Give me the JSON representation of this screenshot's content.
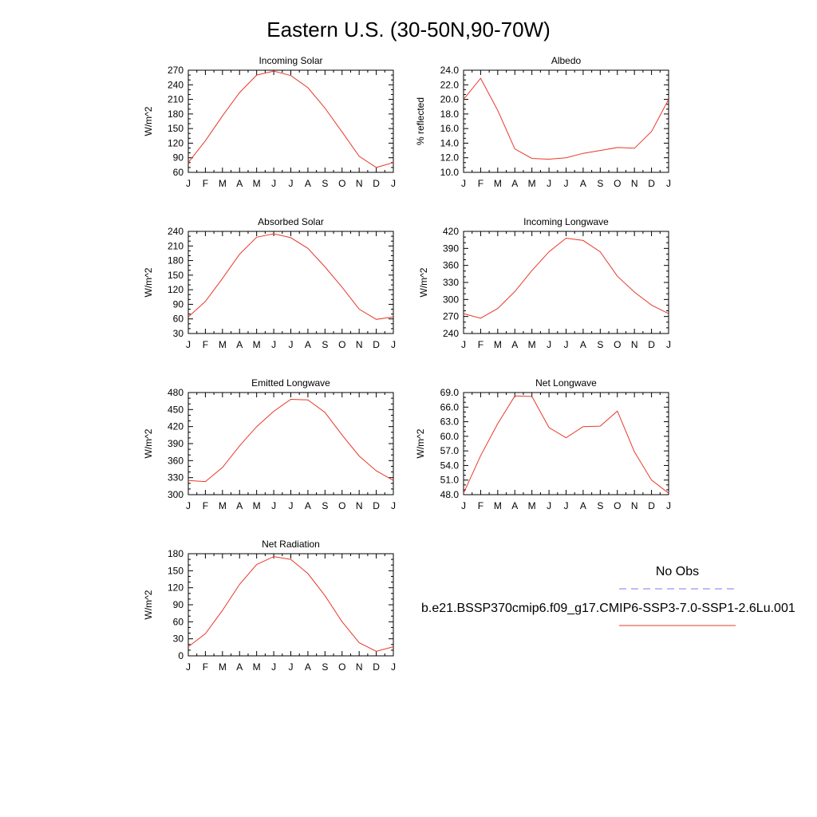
{
  "title": "Eastern U.S. (30-50N,90-70W)",
  "months": [
    "J",
    "F",
    "M",
    "A",
    "M",
    "J",
    "J",
    "A",
    "S",
    "O",
    "N",
    "D",
    "J"
  ],
  "legend": {
    "obs_label": "No Obs",
    "obs_color": "#7b7bf0",
    "model_label": "b.e21.BSSP370cmip6.f09_g17.CMIP6-SSP3-7.0-SSP1-2.6Lu.001",
    "model_color": "#e8382a"
  },
  "chart_data": [
    {
      "type": "line",
      "title": "Incoming Solar",
      "ylabel": "W/m^2",
      "ylim": [
        60,
        270
      ],
      "yticks": [
        "60",
        "90",
        "120",
        "150",
        "180",
        "210",
        "240",
        "270"
      ],
      "series": [
        {
          "values": [
            80,
            125,
            176,
            224,
            260,
            268,
            259,
            234,
            192,
            143,
            93,
            70,
            80
          ]
        }
      ]
    },
    {
      "type": "line",
      "title": "Albedo",
      "ylabel": "% reflected",
      "ylim": [
        10,
        24
      ],
      "yticks": [
        "10.0",
        "12.0",
        "14.0",
        "16.0",
        "18.0",
        "20.0",
        "22.0",
        "24.0"
      ],
      "series": [
        {
          "values": [
            20.0,
            22.9,
            18.5,
            13.2,
            11.9,
            11.8,
            12.0,
            12.6,
            13.0,
            13.4,
            13.3,
            15.6,
            20.0
          ]
        }
      ]
    },
    {
      "type": "line",
      "title": "Absorbed Solar",
      "ylabel": "W/m^2",
      "ylim": [
        30,
        240
      ],
      "yticks": [
        "30",
        "60",
        "90",
        "120",
        "150",
        "180",
        "210",
        "240"
      ],
      "series": [
        {
          "values": [
            64,
            96,
            143,
            193,
            228,
            235,
            227,
            205,
            167,
            125,
            80,
            59,
            64
          ]
        }
      ]
    },
    {
      "type": "line",
      "title": "Incoming Longwave",
      "ylabel": "W/m^2",
      "ylim": [
        240,
        420
      ],
      "yticks": [
        "240",
        "270",
        "300",
        "330",
        "360",
        "390",
        "420"
      ],
      "series": [
        {
          "values": [
            275,
            267,
            284,
            314,
            351,
            384,
            408,
            404,
            384,
            341,
            313,
            290,
            275
          ]
        }
      ]
    },
    {
      "type": "line",
      "title": "Emitted Longwave",
      "ylabel": "W/m^2",
      "ylim": [
        300,
        480
      ],
      "yticks": [
        "300",
        "330",
        "360",
        "390",
        "420",
        "450",
        "480"
      ],
      "series": [
        {
          "values": [
            325,
            323,
            348,
            386,
            420,
            447,
            468,
            467,
            445,
            405,
            368,
            342,
            325
          ]
        }
      ]
    },
    {
      "type": "line",
      "title": "Net Longwave",
      "ylabel": "W/m^2",
      "ylim": [
        48,
        69
      ],
      "yticks": [
        "48.0",
        "51.0",
        "54.0",
        "57.0",
        "60.0",
        "63.0",
        "66.0",
        "69.0"
      ],
      "series": [
        {
          "values": [
            48.3,
            56.0,
            62.6,
            68.3,
            68.2,
            61.8,
            59.7,
            62.0,
            62.1,
            65.2,
            56.8,
            51.0,
            48.3
          ]
        }
      ]
    },
    {
      "type": "line",
      "title": "Net Radiation",
      "ylabel": "W/m^2",
      "ylim": [
        0,
        180
      ],
      "yticks": [
        "0",
        "30",
        "60",
        "90",
        "120",
        "150",
        "180"
      ],
      "series": [
        {
          "values": [
            16,
            39,
            80,
            126,
            161,
            175,
            170,
            145,
            106,
            60,
            23,
            8,
            16
          ]
        }
      ]
    }
  ]
}
